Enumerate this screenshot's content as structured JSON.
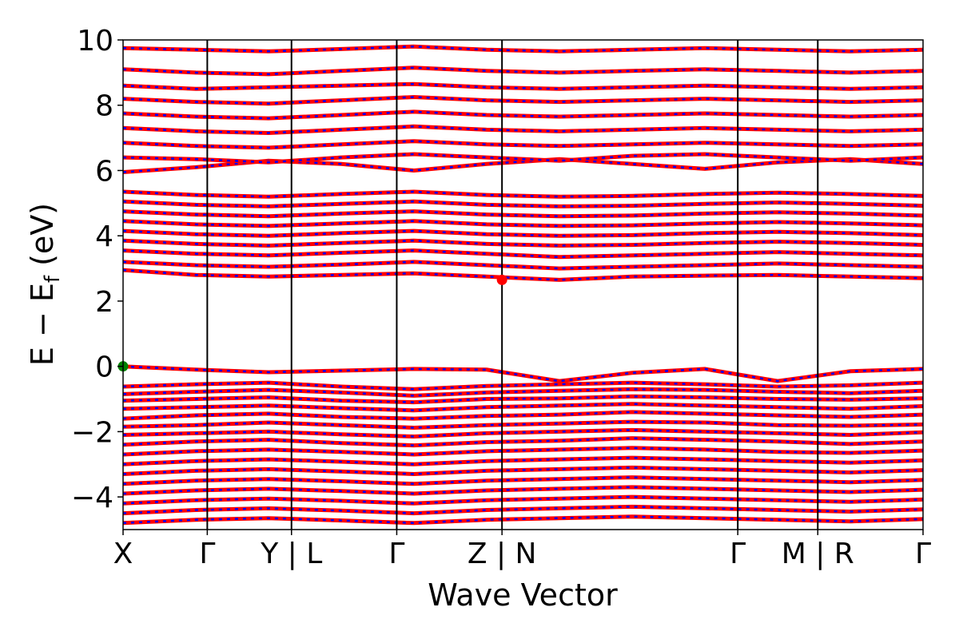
{
  "chart_data": {
    "type": "line",
    "title": "",
    "xlabel": "Wave Vector",
    "ylabel_main": "E − E",
    "ylabel_sub": "f",
    "ylabel_unit": " (eV)",
    "ylim": [
      -5,
      10
    ],
    "yticks": [
      -4,
      -2,
      0,
      2,
      4,
      6,
      8,
      10
    ],
    "ytick_labels": [
      "−4",
      "−2",
      "0",
      "2",
      "4",
      "6",
      "8",
      "10"
    ],
    "kpath_labels": [
      "X",
      "Γ",
      "Y | L",
      "Γ",
      "Z | N",
      "Γ",
      "M | R",
      "Γ"
    ],
    "kpath_positions": [
      0.0,
      1.0,
      2.0,
      3.25,
      4.5,
      7.3,
      8.25,
      9.5
    ],
    "grid": false,
    "legend": "none",
    "colors": {
      "band_line": "#ff0000",
      "band_dash": "#0000ff",
      "vbm_marker": "#008000",
      "cbm_marker": "#ff0000"
    },
    "markers": [
      {
        "name": "VBM",
        "k": 0.0,
        "energy": 0.0,
        "color": "#008000"
      },
      {
        "name": "CBM",
        "k": 4.5,
        "energy": 2.65,
        "color": "#ff0000"
      }
    ],
    "band_gap_eV": 2.65,
    "valence_bands": [
      [
        0.0,
        -0.1,
        -0.18,
        -0.13,
        -0.08,
        -0.1,
        -0.45,
        -0.2,
        -0.08,
        -0.45,
        -0.15,
        -0.08
      ],
      [
        -0.62,
        -0.55,
        -0.5,
        -0.62,
        -0.7,
        -0.6,
        -0.55,
        -0.5,
        -0.55,
        -0.62,
        -0.58,
        -0.5
      ],
      [
        -0.85,
        -0.78,
        -0.72,
        -0.8,
        -0.9,
        -0.8,
        -0.75,
        -0.7,
        -0.72,
        -0.78,
        -0.82,
        -0.75
      ],
      [
        -1.05,
        -1.0,
        -0.95,
        -1.05,
        -1.1,
        -1.0,
        -0.98,
        -0.92,
        -0.95,
        -1.0,
        -1.02,
        -0.98
      ],
      [
        -1.3,
        -1.25,
        -1.2,
        -1.28,
        -1.35,
        -1.25,
        -1.2,
        -1.15,
        -1.2,
        -1.25,
        -1.3,
        -1.22
      ],
      [
        -1.6,
        -1.5,
        -1.45,
        -1.55,
        -1.6,
        -1.52,
        -1.48,
        -1.4,
        -1.45,
        -1.5,
        -1.55,
        -1.48
      ],
      [
        -1.85,
        -1.8,
        -1.72,
        -1.8,
        -1.88,
        -1.8,
        -1.75,
        -1.7,
        -1.72,
        -1.8,
        -1.82,
        -1.78
      ],
      [
        -2.1,
        -2.05,
        -2.0,
        -2.08,
        -2.15,
        -2.05,
        -2.0,
        -1.95,
        -2.0,
        -2.05,
        -2.1,
        -2.02
      ],
      [
        -2.4,
        -2.3,
        -2.25,
        -2.35,
        -2.42,
        -2.32,
        -2.28,
        -2.2,
        -2.25,
        -2.3,
        -2.38,
        -2.3
      ],
      [
        -2.7,
        -2.6,
        -2.55,
        -2.62,
        -2.7,
        -2.6,
        -2.55,
        -2.5,
        -2.55,
        -2.62,
        -2.65,
        -2.58
      ],
      [
        -3.0,
        -2.9,
        -2.85,
        -2.92,
        -3.0,
        -2.9,
        -2.85,
        -2.8,
        -2.85,
        -2.9,
        -2.95,
        -2.88
      ],
      [
        -3.3,
        -3.2,
        -3.15,
        -3.22,
        -3.3,
        -3.2,
        -3.15,
        -3.1,
        -3.15,
        -3.2,
        -3.25,
        -3.18
      ],
      [
        -3.6,
        -3.5,
        -3.45,
        -3.52,
        -3.6,
        -3.5,
        -3.45,
        -3.4,
        -3.45,
        -3.5,
        -3.55,
        -3.48
      ],
      [
        -3.9,
        -3.8,
        -3.75,
        -3.82,
        -3.9,
        -3.8,
        -3.75,
        -3.7,
        -3.75,
        -3.8,
        -3.85,
        -3.78
      ],
      [
        -4.2,
        -4.1,
        -4.05,
        -4.12,
        -4.2,
        -4.1,
        -4.05,
        -4.0,
        -4.05,
        -4.1,
        -4.15,
        -4.08
      ],
      [
        -4.5,
        -4.4,
        -4.35,
        -4.42,
        -4.5,
        -4.4,
        -4.35,
        -4.3,
        -4.35,
        -4.4,
        -4.45,
        -4.38
      ],
      [
        -4.8,
        -4.7,
        -4.65,
        -4.72,
        -4.8,
        -4.7,
        -4.65,
        -4.6,
        -4.65,
        -4.7,
        -4.75,
        -4.68
      ]
    ],
    "conduction_bands": [
      [
        2.95,
        2.8,
        2.75,
        2.8,
        2.85,
        2.75,
        2.65,
        2.75,
        2.78,
        2.8,
        2.75,
        2.7
      ],
      [
        3.2,
        3.1,
        3.05,
        3.12,
        3.2,
        3.1,
        3.0,
        3.05,
        3.1,
        3.15,
        3.1,
        3.05
      ],
      [
        3.55,
        3.45,
        3.4,
        3.48,
        3.55,
        3.45,
        3.35,
        3.4,
        3.45,
        3.5,
        3.45,
        3.4
      ],
      [
        3.85,
        3.75,
        3.7,
        3.78,
        3.85,
        3.75,
        3.7,
        3.72,
        3.78,
        3.82,
        3.78,
        3.72
      ],
      [
        4.15,
        4.05,
        4.0,
        4.08,
        4.15,
        4.05,
        4.0,
        4.02,
        4.08,
        4.12,
        4.08,
        4.02
      ],
      [
        4.45,
        4.35,
        4.3,
        4.38,
        4.45,
        4.35,
        4.3,
        4.32,
        4.38,
        4.42,
        4.38,
        4.32
      ],
      [
        4.75,
        4.65,
        4.6,
        4.68,
        4.75,
        4.65,
        4.6,
        4.62,
        4.68,
        4.72,
        4.68,
        4.62
      ],
      [
        5.05,
        4.95,
        4.9,
        4.98,
        5.05,
        4.95,
        4.9,
        4.92,
        4.98,
        5.02,
        4.98,
        4.92
      ],
      [
        5.35,
        5.25,
        5.2,
        5.28,
        5.35,
        5.25,
        5.2,
        5.22,
        5.28,
        5.32,
        5.28,
        5.22
      ],
      [
        5.95,
        6.1,
        6.3,
        6.2,
        6.0,
        6.2,
        6.35,
        6.2,
        6.05,
        6.25,
        6.35,
        6.2
      ],
      [
        6.4,
        6.35,
        6.25,
        6.4,
        6.5,
        6.4,
        6.3,
        6.45,
        6.5,
        6.4,
        6.3,
        6.4
      ],
      [
        6.85,
        6.75,
        6.7,
        6.8,
        6.9,
        6.8,
        6.75,
        6.8,
        6.85,
        6.8,
        6.75,
        6.8
      ],
      [
        7.3,
        7.2,
        7.15,
        7.25,
        7.35,
        7.25,
        7.2,
        7.25,
        7.3,
        7.25,
        7.2,
        7.25
      ],
      [
        7.75,
        7.65,
        7.6,
        7.7,
        7.8,
        7.7,
        7.65,
        7.7,
        7.75,
        7.7,
        7.65,
        7.7
      ],
      [
        8.2,
        8.1,
        8.05,
        8.15,
        8.25,
        8.15,
        8.1,
        8.15,
        8.2,
        8.15,
        8.1,
        8.15
      ],
      [
        8.6,
        8.5,
        8.55,
        8.6,
        8.65,
        8.55,
        8.5,
        8.55,
        8.6,
        8.55,
        8.5,
        8.55
      ],
      [
        9.1,
        9.0,
        8.95,
        9.05,
        9.15,
        9.05,
        9.0,
        9.05,
        9.1,
        9.05,
        9.0,
        9.05
      ],
      [
        9.75,
        9.7,
        9.65,
        9.72,
        9.8,
        9.7,
        9.65,
        9.7,
        9.75,
        9.7,
        9.65,
        9.7
      ]
    ]
  }
}
